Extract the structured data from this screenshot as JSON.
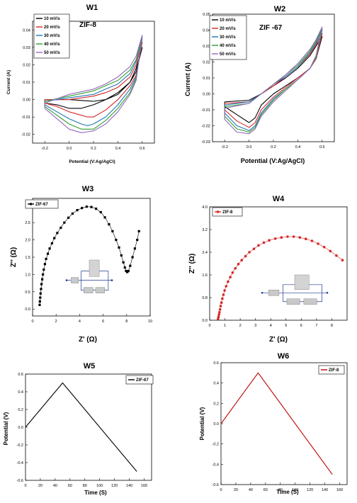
{
  "chart_data": [
    {
      "id": "W1",
      "type": "line",
      "title": "W1",
      "annotation": "ZIF-8",
      "xlabel": "Potential (V:Ag/AgCl)",
      "ylabel": "Current (A)",
      "xlim": [
        -0.3,
        0.7
      ],
      "ylim": [
        -0.025,
        0.045
      ],
      "xticks": [
        -0.2,
        0.0,
        0.2,
        0.4,
        0.6
      ],
      "xtick_labels": [
        "-0.2",
        "0.0",
        "0.2",
        "0.4",
        "0.6"
      ],
      "yticks": [
        -0.02,
        -0.01,
        0.0,
        0.01,
        0.02,
        0.03,
        0.04
      ],
      "ytick_labels": [
        "-0.02",
        "-0.01",
        "0.00",
        "0.01",
        "0.02",
        "0.03",
        "0.04"
      ],
      "legend_position": "top-left",
      "colors": [
        "#000000",
        "#d62728",
        "#1f77b4",
        "#2ca02c",
        "#9467bd"
      ],
      "series": [
        {
          "name": "10 mV/s",
          "x": [
            -0.2,
            0.0,
            0.2,
            0.3,
            0.4,
            0.5,
            0.55,
            0.6,
            0.6,
            0.55,
            0.5,
            0.4,
            0.3,
            0.2,
            0.1,
            0.0,
            -0.1,
            -0.2,
            -0.2
          ],
          "y": [
            0.0,
            0.0,
            -0.001,
            0.0,
            0.003,
            0.01,
            0.018,
            0.03,
            0.03,
            0.016,
            0.01,
            0.004,
            0.0,
            -0.003,
            -0.005,
            -0.005,
            -0.003,
            -0.002,
            0.0
          ]
        },
        {
          "name": "20 mV/s",
          "x": [
            -0.2,
            0.0,
            0.2,
            0.3,
            0.4,
            0.5,
            0.55,
            0.6,
            0.6,
            0.55,
            0.5,
            0.4,
            0.3,
            0.2,
            0.15,
            0.1,
            0.0,
            -0.1,
            -0.2,
            -0.2
          ],
          "y": [
            0.0,
            0.0,
            0.002,
            0.004,
            0.007,
            0.013,
            0.02,
            0.033,
            0.033,
            0.014,
            0.008,
            0.0,
            -0.006,
            -0.01,
            -0.01,
            -0.009,
            -0.007,
            -0.004,
            -0.002,
            0.0
          ]
        },
        {
          "name": "30 mV/s",
          "x": [
            -0.2,
            0.0,
            0.2,
            0.3,
            0.4,
            0.5,
            0.55,
            0.6,
            0.6,
            0.55,
            0.5,
            0.4,
            0.3,
            0.2,
            0.15,
            0.1,
            0.0,
            -0.1,
            -0.2,
            -0.2
          ],
          "y": [
            -0.001,
            0.001,
            0.003,
            0.006,
            0.009,
            0.015,
            0.022,
            0.035,
            0.035,
            0.013,
            0.006,
            -0.003,
            -0.01,
            -0.014,
            -0.015,
            -0.014,
            -0.011,
            -0.007,
            -0.003,
            -0.001
          ]
        },
        {
          "name": "40 mV/s",
          "x": [
            -0.2,
            0.0,
            0.2,
            0.3,
            0.4,
            0.5,
            0.55,
            0.6,
            0.6,
            0.55,
            0.5,
            0.4,
            0.3,
            0.2,
            0.1,
            0.0,
            -0.1,
            -0.2,
            -0.2
          ],
          "y": [
            -0.001,
            0.002,
            0.005,
            0.008,
            0.011,
            0.017,
            0.023,
            0.036,
            0.036,
            0.012,
            0.004,
            -0.005,
            -0.012,
            -0.017,
            -0.017,
            -0.014,
            -0.009,
            -0.004,
            -0.001
          ]
        },
        {
          "name": "50 mV/s",
          "x": [
            -0.2,
            0.0,
            0.2,
            0.3,
            0.4,
            0.5,
            0.55,
            0.6,
            0.6,
            0.55,
            0.5,
            0.4,
            0.3,
            0.2,
            0.1,
            0.05,
            0.0,
            -0.1,
            -0.2,
            -0.2
          ],
          "y": [
            -0.002,
            0.003,
            0.006,
            0.009,
            0.013,
            0.019,
            0.025,
            0.037,
            0.037,
            0.011,
            0.003,
            -0.007,
            -0.014,
            -0.018,
            -0.019,
            -0.018,
            -0.017,
            -0.011,
            -0.005,
            -0.002
          ]
        }
      ]
    },
    {
      "id": "W2",
      "type": "line",
      "title": "W2",
      "annotation": "ZIF -67",
      "xlabel": "Potential (V:Ag/AgCl)",
      "ylabel": "Current (A)",
      "xlim": [
        -0.3,
        0.7
      ],
      "ylim": [
        -0.03,
        0.05
      ],
      "xticks": [
        -0.2,
        0.0,
        0.2,
        0.4,
        0.6
      ],
      "xtick_labels": [
        "-0.2",
        "0.0",
        "0.2",
        "0.4",
        "0.6"
      ],
      "yticks": [
        -0.03,
        -0.02,
        -0.01,
        0.0,
        0.01,
        0.02,
        0.03,
        0.04,
        0.05
      ],
      "ytick_labels": [
        "-0.03",
        "-0.02",
        "-0.01",
        "0.00",
        "0.01",
        "0.02",
        "0.03",
        "0.04",
        "0.05"
      ],
      "legend_position": "top-left",
      "colors": [
        "#000000",
        "#d62728",
        "#1f77b4",
        "#2ca02c",
        "#9467bd"
      ],
      "series": [
        {
          "name": "10 mV/s",
          "x": [
            -0.2,
            0.0,
            0.1,
            0.2,
            0.3,
            0.4,
            0.5,
            0.55,
            0.6,
            0.6,
            0.55,
            0.5,
            0.4,
            0.3,
            0.2,
            0.1,
            0.05,
            0.0,
            -0.1,
            -0.2,
            -0.2
          ],
          "y": [
            -0.005,
            -0.004,
            0.0,
            0.005,
            0.01,
            0.016,
            0.024,
            0.03,
            0.036,
            0.036,
            0.022,
            0.016,
            0.01,
            0.005,
            0.0,
            -0.007,
            -0.015,
            -0.018,
            -0.013,
            -0.008,
            -0.005
          ]
        },
        {
          "name": "20 mV/s",
          "x": [
            -0.2,
            0.0,
            0.1,
            0.2,
            0.3,
            0.4,
            0.5,
            0.55,
            0.6,
            0.6,
            0.55,
            0.5,
            0.4,
            0.3,
            0.2,
            0.1,
            0.05,
            0.0,
            -0.1,
            -0.2,
            -0.2
          ],
          "y": [
            -0.006,
            -0.005,
            0.0,
            0.005,
            0.011,
            0.017,
            0.025,
            0.031,
            0.038,
            0.038,
            0.022,
            0.016,
            0.01,
            0.004,
            -0.002,
            -0.01,
            -0.018,
            -0.021,
            -0.017,
            -0.01,
            -0.006
          ]
        },
        {
          "name": "30 mV/s",
          "x": [
            -0.2,
            0.0,
            0.1,
            0.2,
            0.3,
            0.4,
            0.5,
            0.55,
            0.6,
            0.6,
            0.55,
            0.5,
            0.4,
            0.3,
            0.2,
            0.1,
            0.05,
            0.0,
            -0.1,
            -0.2,
            -0.2
          ],
          "y": [
            -0.007,
            -0.005,
            0.0,
            0.006,
            0.011,
            0.017,
            0.026,
            0.032,
            0.04,
            0.04,
            0.023,
            0.016,
            0.009,
            0.003,
            -0.003,
            -0.012,
            -0.02,
            -0.023,
            -0.02,
            -0.012,
            -0.007
          ]
        },
        {
          "name": "40 mV/s",
          "x": [
            -0.2,
            0.0,
            0.1,
            0.2,
            0.3,
            0.4,
            0.5,
            0.55,
            0.6,
            0.6,
            0.55,
            0.5,
            0.4,
            0.3,
            0.2,
            0.1,
            0.05,
            0.0,
            -0.1,
            -0.2,
            -0.2
          ],
          "y": [
            -0.008,
            -0.006,
            0.0,
            0.006,
            0.012,
            0.018,
            0.027,
            0.033,
            0.041,
            0.041,
            0.023,
            0.016,
            0.009,
            0.003,
            -0.004,
            -0.013,
            -0.021,
            -0.024,
            -0.022,
            -0.014,
            -0.008
          ]
        },
        {
          "name": "50 mV/s",
          "x": [
            -0.2,
            0.0,
            0.1,
            0.2,
            0.3,
            0.4,
            0.5,
            0.55,
            0.6,
            0.6,
            0.55,
            0.5,
            0.4,
            0.3,
            0.2,
            0.1,
            0.05,
            0.0,
            -0.1,
            -0.2,
            -0.2
          ],
          "y": [
            -0.009,
            -0.006,
            0.0,
            0.006,
            0.012,
            0.019,
            0.028,
            0.034,
            0.042,
            0.042,
            0.024,
            0.016,
            0.009,
            0.002,
            -0.005,
            -0.014,
            -0.022,
            -0.025,
            -0.024,
            -0.016,
            -0.009
          ]
        }
      ]
    },
    {
      "id": "W3",
      "type": "scatter",
      "title": "W3",
      "xlabel": "Z' (Ω)",
      "ylabel": "Z'' (Ω)",
      "xlim": [
        0,
        10
      ],
      "ylim": [
        -0.2,
        3.2
      ],
      "xticks": [
        0,
        2,
        4,
        6,
        8,
        10
      ],
      "xtick_labels": [
        "0",
        "2",
        "4",
        "6",
        "8",
        "10"
      ],
      "yticks": [
        0.0,
        0.5,
        1.0,
        1.5,
        2.0,
        2.5,
        3.0
      ],
      "ytick_labels": [
        "0.0",
        "0.5",
        "1.0",
        "1.5",
        "2.0",
        "2.5",
        "3.0"
      ],
      "legend_position": "top-left",
      "marker": "square",
      "colors": [
        "#000000"
      ],
      "series": [
        {
          "name": "ZIF-67",
          "x": [
            0.6,
            0.62,
            0.65,
            0.68,
            0.72,
            0.76,
            0.82,
            0.88,
            0.95,
            1.05,
            1.15,
            1.3,
            1.45,
            1.65,
            1.85,
            2.1,
            2.4,
            2.7,
            3.05,
            3.4,
            3.8,
            4.2,
            4.6,
            5.0,
            5.4,
            5.8,
            6.15,
            6.5,
            6.8,
            7.1,
            7.35,
            7.55,
            7.72,
            7.85,
            7.95,
            8.05,
            8.15,
            8.3,
            8.5,
            8.7,
            8.9,
            9.05
          ],
          "y": [
            0.12,
            0.22,
            0.33,
            0.45,
            0.58,
            0.72,
            0.86,
            1.0,
            1.14,
            1.3,
            1.45,
            1.6,
            1.75,
            1.9,
            2.05,
            2.2,
            2.35,
            2.5,
            2.64,
            2.76,
            2.86,
            2.92,
            2.96,
            2.95,
            2.9,
            2.8,
            2.65,
            2.45,
            2.25,
            2.0,
            1.78,
            1.55,
            1.35,
            1.2,
            1.1,
            1.07,
            1.1,
            1.25,
            1.5,
            1.75,
            2.0,
            2.25
          ]
        }
      ]
    },
    {
      "id": "W4",
      "type": "scatter",
      "title": "W4",
      "xlabel": "Z' (Ω)",
      "ylabel": "Z'' (Ω)",
      "xlim": [
        0,
        9
      ],
      "ylim": [
        0,
        4
      ],
      "xticks": [
        0,
        1,
        2,
        3,
        4,
        5,
        6,
        7,
        8
      ],
      "xtick_labels": [
        "0",
        "1",
        "2",
        "3",
        "4",
        "5",
        "6",
        "7",
        "8"
      ],
      "yticks": [
        0.0,
        0.8,
        1.6,
        2.4,
        3.2,
        4.0
      ],
      "ytick_labels": [
        "0.0",
        "0.8",
        "1.6",
        "2.4",
        "3.2",
        "4.0"
      ],
      "legend_position": "top-left",
      "marker": "circle",
      "colors": [
        "#d62728"
      ],
      "series": [
        {
          "name": "ZIF-8",
          "x": [
            0.55,
            0.58,
            0.61,
            0.64,
            0.68,
            0.72,
            0.77,
            0.83,
            0.9,
            0.98,
            1.08,
            1.2,
            1.35,
            1.5,
            1.68,
            1.88,
            2.1,
            2.35,
            2.6,
            2.9,
            3.2,
            3.55,
            3.9,
            4.3,
            4.7,
            5.1,
            5.5,
            5.9,
            6.3,
            6.7,
            7.1,
            7.5,
            7.9,
            8.3,
            8.7
          ],
          "y": [
            0.05,
            0.12,
            0.2,
            0.28,
            0.38,
            0.5,
            0.62,
            0.76,
            0.9,
            1.05,
            1.2,
            1.36,
            1.52,
            1.68,
            1.83,
            1.98,
            2.12,
            2.26,
            2.4,
            2.52,
            2.64,
            2.74,
            2.82,
            2.88,
            2.92,
            2.95,
            2.95,
            2.92,
            2.87,
            2.8,
            2.7,
            2.58,
            2.44,
            2.28,
            2.12
          ]
        }
      ]
    },
    {
      "id": "W5",
      "type": "line",
      "title": "W5",
      "xlabel": "Time (S)",
      "ylabel": "Potential (V)",
      "xlim": [
        0,
        170
      ],
      "ylim": [
        -0.6,
        0.6
      ],
      "xticks": [
        0,
        20,
        40,
        60,
        80,
        100,
        120,
        140,
        160
      ],
      "xtick_labels": [
        "0",
        "20",
        "40",
        "60",
        "80",
        "100",
        "120",
        "140",
        "160"
      ],
      "yticks": [
        -0.6,
        -0.4,
        -0.2,
        0.0,
        0.2,
        0.4,
        0.6
      ],
      "ytick_labels": [
        "-0.6",
        "-0.4",
        "-0.2",
        "0.0",
        "0.2",
        "0.4",
        "0.6"
      ],
      "legend_position": "top-right",
      "colors": [
        "#000000"
      ],
      "series": [
        {
          "name": "ZIF-67",
          "x": [
            0,
            50,
            150
          ],
          "y": [
            0.0,
            0.5,
            -0.5
          ]
        }
      ]
    },
    {
      "id": "W6",
      "type": "line",
      "title": "W6",
      "xlabel": "Time (S)",
      "ylabel": "Potential (V)",
      "xlim": [
        0,
        170
      ],
      "ylim": [
        -0.6,
        0.6
      ],
      "xticks": [
        0,
        20,
        40,
        60,
        80,
        100,
        120,
        140,
        160
      ],
      "xtick_labels": [
        "0",
        "20",
        "40",
        "60",
        "80",
        "100",
        "120",
        "140",
        "160"
      ],
      "yticks": [
        -0.6,
        -0.4,
        -0.2,
        0.0,
        0.2,
        0.4,
        0.6
      ],
      "ytick_labels": [
        "-0.6",
        "-0.4",
        "-0.2",
        "0.0",
        "0.2",
        "0.4",
        "0.6"
      ],
      "legend_position": "top-right",
      "colors": [
        "#c00000"
      ],
      "series": [
        {
          "name": "ZIF-8",
          "x": [
            0,
            50,
            150
          ],
          "y": [
            0.0,
            0.5,
            -0.5
          ]
        }
      ]
    }
  ]
}
